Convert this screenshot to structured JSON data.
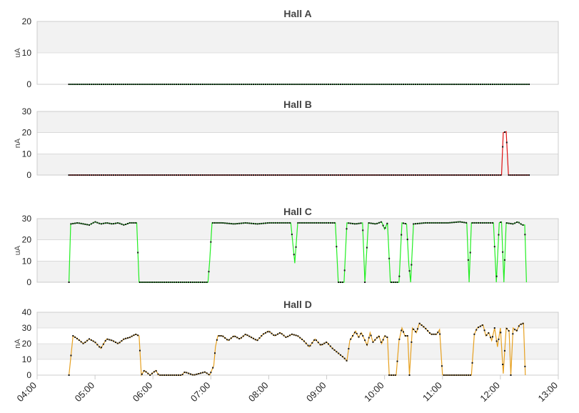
{
  "colors": {
    "band": "#f2f2f2",
    "frame": "#cccccc",
    "marker": "#111111",
    "hall_a": "#2ecc40",
    "hall_b": "#dd1111",
    "hall_c": "#22ee22",
    "hall_d": "#e6a020"
  },
  "x_axis": {
    "ticks": [
      "04:00",
      "05:00",
      "06:00",
      "07:00",
      "08:00",
      "09:00",
      "10:00",
      "11:00",
      "12:00",
      "13:00"
    ],
    "range_hours": [
      4,
      13
    ]
  },
  "chart_data": [
    {
      "type": "line",
      "title": "Hall A",
      "ylabel": "uA",
      "ylim": [
        0,
        20
      ],
      "yticks": [
        0,
        10,
        20
      ],
      "grid": true,
      "series": [
        {
          "color_key": "hall_a",
          "points": [
            [
              4.55,
              0
            ],
            [
              5.0,
              0
            ],
            [
              6.0,
              0
            ],
            [
              7.0,
              0
            ],
            [
              8.0,
              0
            ],
            [
              9.0,
              0
            ],
            [
              10.0,
              0
            ],
            [
              11.0,
              0
            ],
            [
              12.0,
              0
            ],
            [
              12.5,
              0
            ]
          ]
        }
      ]
    },
    {
      "type": "line",
      "title": "Hall B",
      "ylabel": "nA",
      "ylim": [
        0,
        30
      ],
      "yticks": [
        0,
        10,
        20,
        30
      ],
      "grid": true,
      "series": [
        {
          "color_key": "hall_b",
          "points": [
            [
              4.55,
              0
            ],
            [
              11.9,
              0
            ],
            [
              12.02,
              0
            ],
            [
              12.05,
              20
            ],
            [
              12.1,
              20.5
            ],
            [
              12.14,
              0
            ],
            [
              12.5,
              0
            ]
          ]
        }
      ]
    },
    {
      "type": "line",
      "title": "Hall C",
      "ylabel": "uA",
      "ylim": [
        0,
        30
      ],
      "yticks": [
        0,
        10,
        20,
        30
      ],
      "grid": true,
      "series": [
        {
          "color_key": "hall_c",
          "points": [
            [
              4.55,
              0
            ],
            [
              4.58,
              27.5
            ],
            [
              4.7,
              28
            ],
            [
              4.8,
              27.5
            ],
            [
              4.9,
              27
            ],
            [
              5.0,
              28.5
            ],
            [
              5.1,
              27.5
            ],
            [
              5.2,
              28
            ],
            [
              5.3,
              27.5
            ],
            [
              5.4,
              28
            ],
            [
              5.5,
              27
            ],
            [
              5.6,
              28
            ],
            [
              5.72,
              28
            ],
            [
              5.76,
              0
            ],
            [
              6.2,
              0
            ],
            [
              6.95,
              0
            ],
            [
              6.98,
              10
            ],
            [
              7.02,
              28
            ],
            [
              7.2,
              28
            ],
            [
              7.4,
              27.5
            ],
            [
              7.6,
              28
            ],
            [
              7.8,
              27.5
            ],
            [
              8.0,
              28
            ],
            [
              8.2,
              28
            ],
            [
              8.38,
              28
            ],
            [
              8.45,
              9
            ],
            [
              8.5,
              28
            ],
            [
              8.7,
              28
            ],
            [
              8.9,
              28
            ],
            [
              9.0,
              28
            ],
            [
              9.15,
              28
            ],
            [
              9.2,
              0
            ],
            [
              9.3,
              0
            ],
            [
              9.35,
              28
            ],
            [
              9.5,
              27.5
            ],
            [
              9.62,
              28
            ],
            [
              9.66,
              0
            ],
            [
              9.72,
              28
            ],
            [
              9.85,
              27.5
            ],
            [
              9.95,
              28.5
            ],
            [
              10.0,
              25
            ],
            [
              10.05,
              28
            ],
            [
              10.1,
              0
            ],
            [
              10.25,
              0
            ],
            [
              10.3,
              28
            ],
            [
              10.38,
              27.5
            ],
            [
              10.42,
              8
            ],
            [
              10.45,
              0
            ],
            [
              10.5,
              27.5
            ],
            [
              10.7,
              28
            ],
            [
              10.9,
              28
            ],
            [
              11.1,
              28
            ],
            [
              11.3,
              28.5
            ],
            [
              11.42,
              28
            ],
            [
              11.46,
              0
            ],
            [
              11.5,
              28
            ],
            [
              11.7,
              28
            ],
            [
              11.88,
              28
            ],
            [
              11.93,
              0
            ],
            [
              11.98,
              28
            ],
            [
              12.02,
              28.5
            ],
            [
              12.06,
              0
            ],
            [
              12.1,
              28
            ],
            [
              12.22,
              27.5
            ],
            [
              12.3,
              28.5
            ],
            [
              12.38,
              27
            ],
            [
              12.42,
              27
            ],
            [
              12.45,
              0
            ]
          ]
        }
      ]
    },
    {
      "type": "line",
      "title": "Hall D",
      "ylabel": "nA",
      "ylim": [
        0,
        40
      ],
      "yticks": [
        0,
        10,
        20,
        30,
        40
      ],
      "grid": true,
      "series": [
        {
          "color_key": "hall_d",
          "points": [
            [
              4.55,
              0
            ],
            [
              4.62,
              25
            ],
            [
              4.7,
              23
            ],
            [
              4.8,
              20
            ],
            [
              4.9,
              23
            ],
            [
              5.0,
              21
            ],
            [
              5.1,
              17
            ],
            [
              5.2,
              23
            ],
            [
              5.3,
              22
            ],
            [
              5.4,
              20
            ],
            [
              5.5,
              23
            ],
            [
              5.6,
              24
            ],
            [
              5.7,
              26
            ],
            [
              5.76,
              25
            ],
            [
              5.8,
              0
            ],
            [
              5.85,
              3
            ],
            [
              5.95,
              0
            ],
            [
              6.05,
              3
            ],
            [
              6.1,
              0
            ],
            [
              6.5,
              0
            ],
            [
              6.55,
              2
            ],
            [
              6.7,
              0
            ],
            [
              6.9,
              2
            ],
            [
              6.98,
              0
            ],
            [
              7.05,
              6
            ],
            [
              7.08,
              18
            ],
            [
              7.12,
              25
            ],
            [
              7.2,
              25
            ],
            [
              7.3,
              22
            ],
            [
              7.4,
              25
            ],
            [
              7.5,
              23
            ],
            [
              7.6,
              26
            ],
            [
              7.7,
              24
            ],
            [
              7.8,
              22
            ],
            [
              7.9,
              26
            ],
            [
              8.0,
              28
            ],
            [
              8.1,
              25
            ],
            [
              8.2,
              27
            ],
            [
              8.3,
              24
            ],
            [
              8.4,
              26
            ],
            [
              8.5,
              25
            ],
            [
              8.6,
              22
            ],
            [
              8.7,
              18
            ],
            [
              8.8,
              23
            ],
            [
              8.9,
              19
            ],
            [
              9.0,
              21
            ],
            [
              9.1,
              17
            ],
            [
              9.2,
              14
            ],
            [
              9.3,
              11
            ],
            [
              9.35,
              9
            ],
            [
              9.4,
              22
            ],
            [
              9.5,
              28
            ],
            [
              9.55,
              24
            ],
            [
              9.6,
              27
            ],
            [
              9.7,
              19
            ],
            [
              9.75,
              27
            ],
            [
              9.8,
              21
            ],
            [
              9.9,
              25
            ],
            [
              9.95,
              20
            ],
            [
              10.0,
              25
            ],
            [
              10.05,
              24
            ],
            [
              10.08,
              0
            ],
            [
              10.2,
              0
            ],
            [
              10.25,
              22
            ],
            [
              10.3,
              30
            ],
            [
              10.35,
              25
            ],
            [
              10.4,
              25
            ],
            [
              10.43,
              0
            ],
            [
              10.48,
              30
            ],
            [
              10.55,
              27
            ],
            [
              10.6,
              33
            ],
            [
              10.7,
              30
            ],
            [
              10.8,
              26
            ],
            [
              10.9,
              26
            ],
            [
              10.95,
              29
            ],
            [
              11.0,
              0
            ],
            [
              11.5,
              0
            ],
            [
              11.55,
              26
            ],
            [
              11.6,
              30
            ],
            [
              11.7,
              32
            ],
            [
              11.75,
              25
            ],
            [
              11.8,
              27
            ],
            [
              11.85,
              22
            ],
            [
              11.9,
              30
            ],
            [
              11.95,
              18
            ],
            [
              12.0,
              30
            ],
            [
              12.05,
              1
            ],
            [
              12.1,
              30
            ],
            [
              12.15,
              28
            ],
            [
              12.18,
              0
            ],
            [
              12.22,
              30
            ],
            [
              12.28,
              28
            ],
            [
              12.33,
              32
            ],
            [
              12.4,
              33
            ],
            [
              12.43,
              0
            ]
          ]
        }
      ]
    }
  ]
}
